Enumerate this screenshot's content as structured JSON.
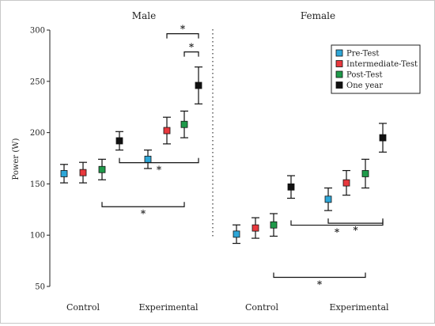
{
  "chart_data": {
    "type": "scatter",
    "ylabel": "Power (W)",
    "ylim": [
      50,
      300
    ],
    "yticks": [
      50,
      100,
      150,
      200,
      250,
      300
    ],
    "grid": false,
    "legend_position": "top-right",
    "series_colors": [
      "#2ea7d8",
      "#e8383d",
      "#1f9a4a",
      "#111111"
    ],
    "legend": [
      "Pre-Test",
      "Intermediate-Test",
      "Post-Test",
      "One year"
    ],
    "panels": [
      {
        "title": "Male",
        "groups": [
          {
            "label": "Control",
            "points": [
              {
                "series": "Pre-Test",
                "mean": 160,
                "error": 9
              },
              {
                "series": "Intermediate-Test",
                "mean": 161,
                "error": 10
              },
              {
                "series": "Post-Test",
                "mean": 164,
                "error": 10
              },
              {
                "series": "One year",
                "mean": 192,
                "error": 9
              }
            ]
          },
          {
            "label": "Experimental",
            "points": [
              {
                "series": "Pre-Test",
                "mean": 174,
                "error": 9
              },
              {
                "series": "Intermediate-Test",
                "mean": 202,
                "error": 13
              },
              {
                "series": "Post-Test",
                "mean": 208,
                "error": 13
              },
              {
                "series": "One year",
                "mean": 246,
                "error": 18
              }
            ]
          }
        ],
        "significance": [
          {
            "label": "*",
            "from": [
              "Experimental",
              "Intermediate-Test"
            ],
            "to": [
              "Experimental",
              "One year"
            ],
            "side": "top"
          },
          {
            "label": "*",
            "from": [
              "Experimental",
              "Post-Test"
            ],
            "to": [
              "Experimental",
              "One year"
            ],
            "side": "top"
          },
          {
            "label": "*",
            "from": [
              "Control",
              "One year"
            ],
            "to": [
              "Experimental",
              "One year"
            ],
            "side": "bottom"
          },
          {
            "label": "*",
            "from": [
              "Control",
              "Post-Test"
            ],
            "to": [
              "Experimental",
              "Post-Test"
            ],
            "side": "bottom"
          }
        ]
      },
      {
        "title": "Female",
        "groups": [
          {
            "label": "Control",
            "points": [
              {
                "series": "Pre-Test",
                "mean": 101,
                "error": 9
              },
              {
                "series": "Intermediate-Test",
                "mean": 107,
                "error": 10
              },
              {
                "series": "Post-Test",
                "mean": 110,
                "error": 11
              },
              {
                "series": "One year",
                "mean": 147,
                "error": 11
              }
            ]
          },
          {
            "label": "Experimental",
            "points": [
              {
                "series": "Pre-Test",
                "mean": 135,
                "error": 11
              },
              {
                "series": "Intermediate-Test",
                "mean": 151,
                "error": 12
              },
              {
                "series": "Post-Test",
                "mean": 160,
                "error": 14
              },
              {
                "series": "One year",
                "mean": 195,
                "error": 14
              }
            ]
          }
        ],
        "significance": [
          {
            "label": "*",
            "from": [
              "Experimental",
              "Pre-Test"
            ],
            "to": [
              "Experimental",
              "One year"
            ],
            "side": "bottom"
          },
          {
            "label": "*",
            "from": [
              "Control",
              "One year"
            ],
            "to": [
              "Experimental",
              "One year"
            ],
            "side": "bottom"
          },
          {
            "label": "*",
            "from": [
              "Control",
              "Post-Test"
            ],
            "to": [
              "Experimental",
              "Post-Test"
            ],
            "side": "bottom"
          }
        ]
      }
    ]
  }
}
